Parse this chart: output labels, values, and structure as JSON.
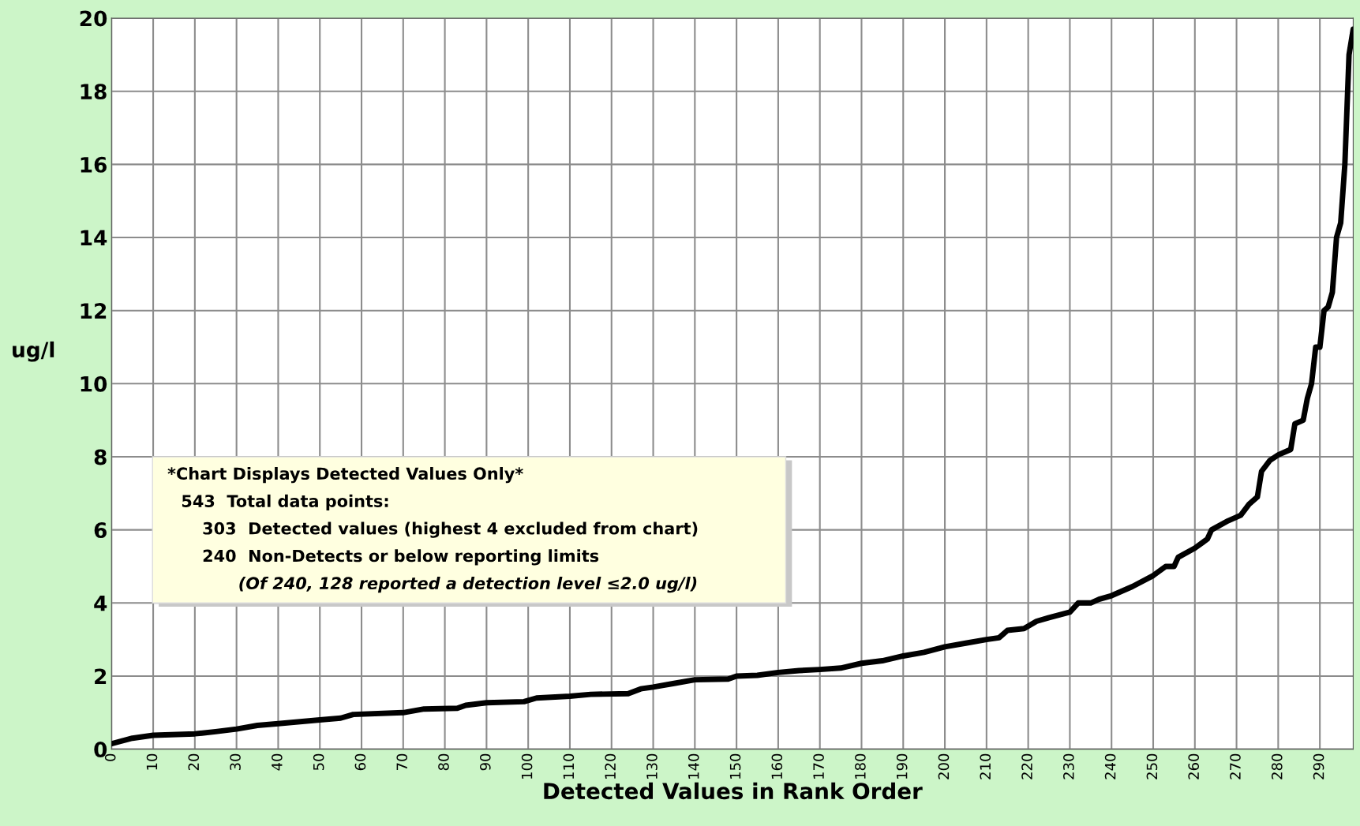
{
  "chart_data": {
    "type": "line",
    "xlabel": "Detected Values in Rank Order",
    "ylabel": "ug/l",
    "x": [
      0,
      5,
      10,
      20,
      25,
      30,
      35,
      40,
      50,
      55,
      58,
      70,
      75,
      83,
      85,
      90,
      99,
      102,
      110,
      115,
      124,
      127,
      130,
      135,
      140,
      148,
      150,
      155,
      160,
      165,
      170,
      175,
      180,
      185,
      190,
      195,
      200,
      205,
      210,
      213,
      215,
      219,
      222,
      225,
      230,
      232,
      235,
      237,
      240,
      245,
      250,
      253,
      255,
      256,
      260,
      263,
      264,
      268,
      271,
      273,
      275,
      276,
      278,
      280,
      282,
      283,
      284,
      286,
      287,
      288,
      289,
      290,
      291,
      292,
      293,
      294,
      295,
      296,
      297,
      298
    ],
    "series": [
      {
        "color": "#000000",
        "values": [
          0.15,
          0.3,
          0.38,
          0.42,
          0.48,
          0.55,
          0.65,
          0.7,
          0.8,
          0.85,
          0.95,
          1.0,
          1.1,
          1.12,
          1.2,
          1.27,
          1.3,
          1.4,
          1.45,
          1.5,
          1.52,
          1.65,
          1.7,
          1.8,
          1.9,
          1.92,
          2.0,
          2.02,
          2.1,
          2.15,
          2.18,
          2.22,
          2.35,
          2.42,
          2.55,
          2.65,
          2.8,
          2.9,
          3.0,
          3.05,
          3.25,
          3.3,
          3.5,
          3.6,
          3.75,
          4.0,
          4.0,
          4.1,
          4.2,
          4.45,
          4.75,
          5.0,
          5.0,
          5.25,
          5.5,
          5.75,
          6.0,
          6.25,
          6.4,
          6.7,
          6.9,
          7.6,
          7.9,
          8.05,
          8.15,
          8.2,
          8.9,
          9.0,
          9.6,
          10.0,
          11.0,
          11.0,
          12.0,
          12.1,
          12.5,
          14.0,
          14.4,
          16.0,
          19.0,
          19.7
        ]
      }
    ],
    "xlim": [
      0,
      298
    ],
    "xticks": [
      0,
      10,
      20,
      30,
      40,
      50,
      60,
      70,
      80,
      90,
      100,
      110,
      120,
      130,
      140,
      150,
      160,
      170,
      180,
      190,
      200,
      210,
      220,
      230,
      240,
      250,
      260,
      270,
      280,
      290
    ],
    "ylim": [
      0,
      20
    ],
    "yticks": [
      0,
      2,
      4,
      6,
      8,
      10,
      12,
      14,
      16,
      18,
      20
    ],
    "grid": true,
    "line_style": "solid",
    "marker": "none",
    "legend": false,
    "annotations": [
      "*Chart Displays Detected Values Only*",
      "543  Total data points:",
      "303  Detected values (highest 4 excluded from chart)",
      "240  Non-Detects or below reporting limits",
      "(Of 240, 128 reported a detection level ≤2.0 ug/l)"
    ]
  }
}
